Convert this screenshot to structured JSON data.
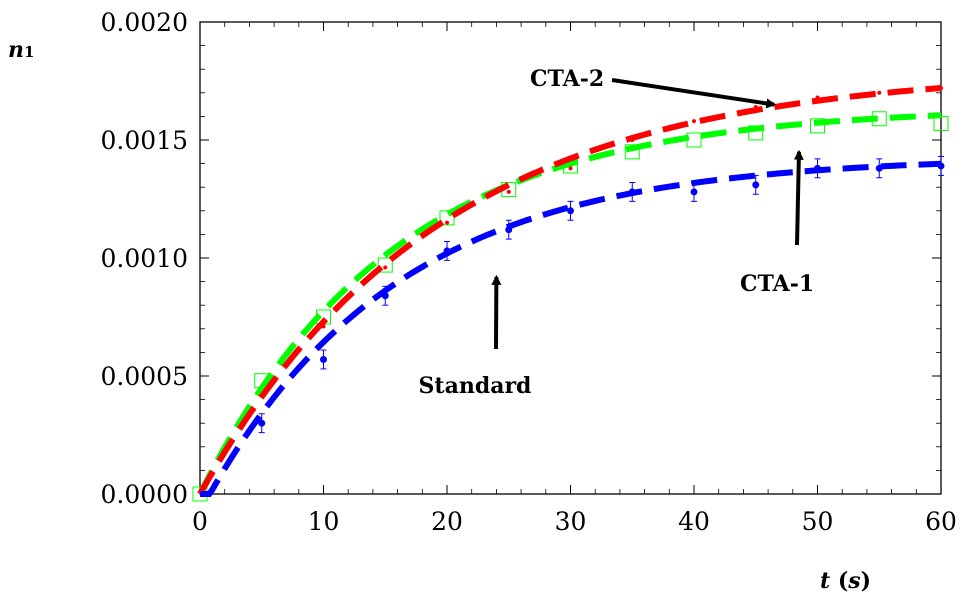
{
  "chart_data": {
    "type": "line",
    "xlabel": {
      "var": "t",
      "unit": "s"
    },
    "ylabel": {
      "var": "n",
      "sub": "1"
    },
    "xlim": [
      0,
      60
    ],
    "ylim": [
      0,
      0.002
    ],
    "xticks": [
      "0",
      "10",
      "20",
      "30",
      "40",
      "50",
      "60"
    ],
    "yticks": [
      "0.0000",
      "0.0005",
      "0.0010",
      "0.0015",
      "0.0020"
    ],
    "grid": false,
    "series": [
      {
        "name": "Standard",
        "color": "#0000ff",
        "style": "dashed-line-with-error-bars",
        "fit": {
          "a": 0.00143,
          "k": 0.065,
          "x0": 0.8
        },
        "x": [
          5,
          10,
          15,
          20,
          25,
          30,
          35,
          40,
          45,
          50,
          55,
          60
        ],
        "y": [
          0.0003,
          0.00057,
          0.00084,
          0.00103,
          0.00112,
          0.0012,
          0.00128,
          0.00128,
          0.00131,
          0.00138,
          0.00138,
          0.00139
        ],
        "err": [
          4e-05,
          4e-05,
          4e-05,
          4e-05,
          4e-05,
          4e-05,
          4e-05,
          4e-05,
          4e-05,
          4e-05,
          4e-05,
          4e-05
        ]
      },
      {
        "name": "CTA-1",
        "color": "#00ff00",
        "style": "dashed-line-with-open-squares",
        "fit": {
          "a": 0.00164,
          "k": 0.064,
          "x0": 0
        },
        "x": [
          0,
          5,
          10,
          15,
          20,
          25,
          30,
          35,
          40,
          45,
          50,
          55,
          60
        ],
        "y": [
          0.0,
          0.00048,
          0.00075,
          0.00097,
          0.00117,
          0.00129,
          0.00139,
          0.00145,
          0.0015,
          0.00153,
          0.00156,
          0.00159,
          0.00157
        ]
      },
      {
        "name": "CTA-2",
        "color": "#ff0000",
        "style": "dashed-line",
        "fit": {
          "a": 0.0018,
          "k": 0.052,
          "x0": 0
        },
        "x": [
          5,
          10,
          15,
          20,
          25,
          30,
          35,
          40,
          45,
          50,
          55,
          60
        ],
        "y": [
          0.00042,
          0.00071,
          0.00096,
          0.00115,
          0.00128,
          0.00138,
          0.0015,
          0.00158,
          0.00164,
          0.00168,
          0.0017,
          0.00172
        ]
      }
    ],
    "annotations": [
      {
        "text": "CTA-2",
        "points_to": [
          46.5,
          0.00165
        ]
      },
      {
        "text": "CTA-1",
        "points_to": [
          48.5,
          0.00145
        ]
      },
      {
        "text": "Standard",
        "points_to": [
          24,
          0.00092
        ]
      }
    ]
  }
}
